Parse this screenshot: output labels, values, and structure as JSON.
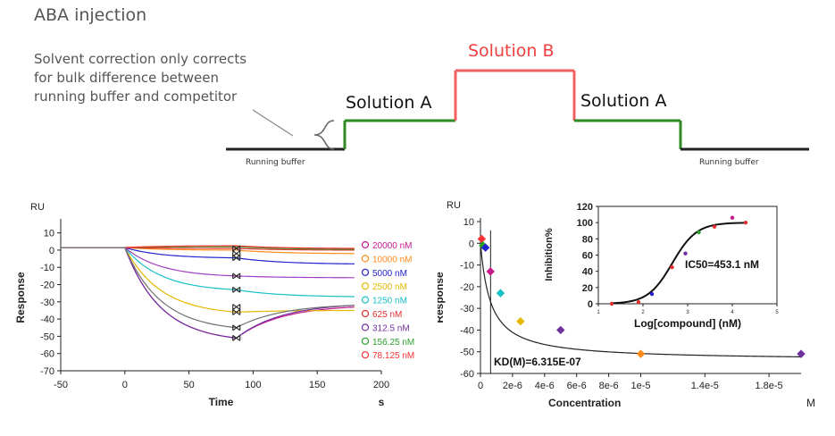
{
  "header": {
    "title": "ABA injection",
    "note_lines": [
      "Solvent correction only corrects",
      "for bulk difference between",
      "running buffer and competitor"
    ],
    "solution_a": "Solution A",
    "solution_b": "Solution B",
    "running_buffer": "Running buffer",
    "colors": {
      "running_buffer": "#222222",
      "solution_a": "#2e8b22",
      "solution_b": "#f06060"
    }
  },
  "chart_data": [
    {
      "type": "line",
      "title": "",
      "ylabel_top": "RU",
      "ylabel": "Response",
      "xlabel": "Time",
      "xunit": "s",
      "xlim": [
        -50,
        200
      ],
      "ylim": [
        -70,
        15
      ],
      "xticks": [
        -50,
        0,
        50,
        100,
        150,
        200
      ],
      "yticks": [
        10,
        0,
        -10,
        -20,
        -30,
        -40,
        -50,
        -60,
        -70
      ],
      "marker_time": 87,
      "series": [
        {
          "name": "20000 nM",
          "color": "#c8198c",
          "end_injection": -51,
          "end_time": -33
        },
        {
          "name": "10000 nM",
          "color": "#ff8c1a",
          "end_injection": 0,
          "end_time": -2
        },
        {
          "name": "5000 nM",
          "color": "#2222cc",
          "end_injection": -4.5,
          "end_time": -8
        },
        {
          "name": "2500 nM",
          "color": "#e6b800",
          "end_injection": -36,
          "end_time": -35
        },
        {
          "name": "1250 nM",
          "color": "#18c0c8",
          "end_injection": -23,
          "end_time": -27
        },
        {
          "name": "625 nM",
          "color": "#e03030",
          "end_injection": 1,
          "end_time": 0
        },
        {
          "name": "312.5 nM",
          "color": "#7030a0",
          "end_injection": -51,
          "end_time": -32
        },
        {
          "name": "156.25 nM",
          "color": "#2ca02c",
          "end_injection": 2,
          "end_time": 0.5
        },
        {
          "name": "78.125 nM",
          "color": "#ff3030",
          "end_injection": 2.5,
          "end_time": 1
        }
      ],
      "extra_curves": [
        {
          "color": "#a040c0",
          "end_injection": -15,
          "end_time": -16
        },
        {
          "color": "#707070",
          "end_injection": -45,
          "end_time": -32
        }
      ]
    },
    {
      "type": "scatter",
      "title": "",
      "ylabel_top": "RU",
      "ylabel": "Response",
      "xlabel": "Concentration",
      "xunit": "M",
      "xlim": [
        0,
        2e-05
      ],
      "ylim": [
        -60,
        10
      ],
      "xticks": [
        "0",
        "2e-6",
        "4e-6",
        "6e-6",
        "8e-6",
        "1e-5",
        "1.4e-5",
        "1.8e-5"
      ],
      "yticks": [
        10,
        0,
        -10,
        -20,
        -30,
        -40,
        -50,
        -60
      ],
      "kd_label": "KD(M)=6.315E-07",
      "points": [
        {
          "x": 7.8e-08,
          "y": 2,
          "color": "#ff3030"
        },
        {
          "x": 1.56e-07,
          "y": -1,
          "color": "#2ca02c"
        },
        {
          "x": 3.125e-07,
          "y": -2,
          "color": "#2222cc"
        },
        {
          "x": 6.25e-07,
          "y": -13,
          "color": "#c8198c"
        },
        {
          "x": 1.25e-06,
          "y": -23,
          "color": "#18c0c8"
        },
        {
          "x": 2.5e-06,
          "y": -36,
          "color": "#e6b800"
        },
        {
          "x": 5e-06,
          "y": -40,
          "color": "#7030a0"
        },
        {
          "x": 1e-05,
          "y": -51,
          "color": "#ff8c1a"
        },
        {
          "x": 2e-05,
          "y": -51,
          "color": "#7030a0"
        }
      ],
      "fit": {
        "rmax": -54,
        "kd": 6.315e-07
      }
    },
    {
      "type": "scatter",
      "title": "",
      "ylabel": "Inhibition%",
      "xlabel": "Log[compound] (nM)",
      "xlim": [
        1,
        5
      ],
      "ylim": [
        0,
        120
      ],
      "xticks": [
        "1",
        "2",
        "3",
        "4",
        "5"
      ],
      "yticks": [
        120,
        100,
        80,
        60,
        40,
        20,
        0
      ],
      "ic50_label": "IC50=453.1 nM",
      "points": [
        {
          "x": 1.3,
          "y": 0,
          "color": "#e03030"
        },
        {
          "x": 1.9,
          "y": 2,
          "color": "#e03030"
        },
        {
          "x": 2.2,
          "y": 12,
          "color": "#2222cc"
        },
        {
          "x": 2.65,
          "y": 45,
          "color": "#e03030"
        },
        {
          "x": 2.95,
          "y": 62,
          "color": "#7030a0"
        },
        {
          "x": 3.25,
          "y": 88,
          "color": "#2ca02c"
        },
        {
          "x": 3.6,
          "y": 95,
          "color": "#e03030"
        },
        {
          "x": 4.0,
          "y": 106,
          "color": "#c8198c"
        },
        {
          "x": 4.3,
          "y": 100,
          "color": "#e03030"
        }
      ],
      "fit": {
        "ic50_log": 2.656,
        "hill": 1.6,
        "top": 100,
        "bottom": 0
      }
    }
  ]
}
